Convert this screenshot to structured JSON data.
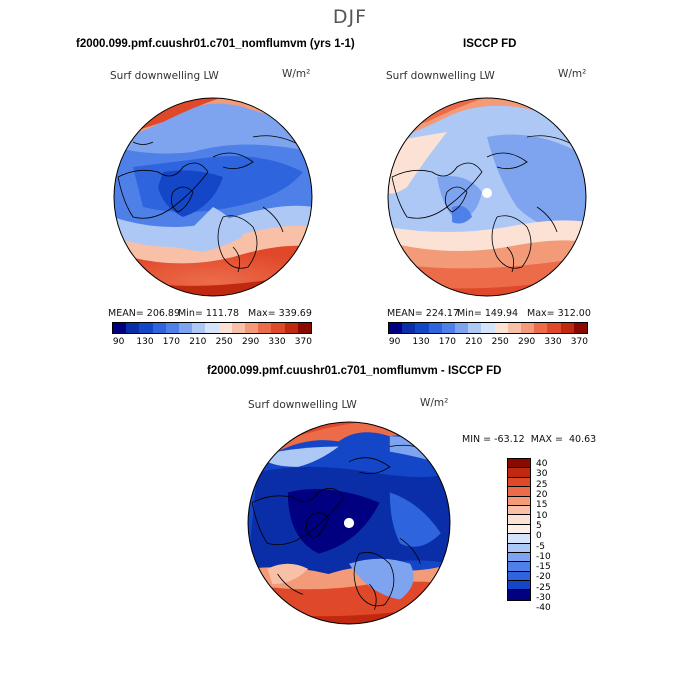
{
  "chart_data": [
    {
      "type": "heatmap",
      "projection": "north-polar-stereographic",
      "title": "f2000.099.pmf.cuushr01.c701_nomflumvm (yrs 1-1)",
      "variable": "Surf downwelling LW",
      "units": "W/m²",
      "mean_label": "MEAN= 206.89",
      "min_label": "Min= 111.78",
      "max_label": "Max= 339.69",
      "mean": 206.89,
      "min": 111.78,
      "max": 339.69,
      "colorbar_levels": [
        90,
        110,
        130,
        150,
        170,
        190,
        210,
        230,
        250,
        270,
        290,
        310,
        330,
        350,
        370
      ],
      "colorbar_tick_labels": [
        "90",
        "130",
        "170",
        "210",
        "250",
        "290",
        "330",
        "370"
      ],
      "colors": [
        "#000080",
        "#0a2ea8",
        "#1446c8",
        "#2e64de",
        "#4f80e8",
        "#7ea4f0",
        "#aec8f6",
        "#d6e4fb",
        "#fbe2d4",
        "#f8c0a6",
        "#f39a78",
        "#ec6c4a",
        "#e0482a",
        "#c02810",
        "#8a0a00"
      ]
    },
    {
      "type": "heatmap",
      "projection": "north-polar-stereographic",
      "title": "ISCCP FD",
      "variable": "Surf downwelling LW",
      "units": "W/m²",
      "mean_label": "MEAN= 224.17",
      "min_label": "Min= 149.94",
      "max_label": "Max= 312.00",
      "mean": 224.17,
      "min": 149.94,
      "max": 312.0,
      "colorbar_levels": [
        90,
        110,
        130,
        150,
        170,
        190,
        210,
        230,
        250,
        270,
        290,
        310,
        330,
        350,
        370
      ],
      "colorbar_tick_labels": [
        "90",
        "130",
        "170",
        "210",
        "250",
        "290",
        "330",
        "370"
      ],
      "colors": [
        "#000080",
        "#0a2ea8",
        "#1446c8",
        "#2e64de",
        "#4f80e8",
        "#7ea4f0",
        "#aec8f6",
        "#d6e4fb",
        "#fbe2d4",
        "#f8c0a6",
        "#f39a78",
        "#ec6c4a",
        "#e0482a",
        "#c02810",
        "#8a0a00"
      ]
    },
    {
      "type": "heatmap",
      "projection": "north-polar-stereographic",
      "title": "f2000.099.pmf.cuushr01.c701_nomflumvm - ISCCP FD",
      "variable": "Surf downwelling LW",
      "units": "W/m²",
      "minmax_label": "MIN = -63.12  MAX =  40.63",
      "min": -63.12,
      "max": 40.63,
      "colorbar_levels": [
        40,
        30,
        25,
        20,
        15,
        10,
        5,
        0,
        -5,
        -10,
        -15,
        -20,
        -25,
        -30,
        -40
      ],
      "colorbar_tick_labels": [
        "40",
        "30",
        "25",
        "20",
        "15",
        "10",
        "5",
        "0",
        "-5",
        "-10",
        "-15",
        "-20",
        "-25",
        "-30",
        "-40"
      ],
      "colors": [
        "#8a0a00",
        "#c02810",
        "#e0482a",
        "#ec6c4a",
        "#f39a78",
        "#f8c0a6",
        "#fbe2d4",
        "#fdf0e8",
        "#d6e4fb",
        "#aec8f6",
        "#7ea4f0",
        "#4f80e8",
        "#2e64de",
        "#1446c8",
        "#000080"
      ]
    }
  ],
  "page": {
    "suptitle": "DJF"
  }
}
